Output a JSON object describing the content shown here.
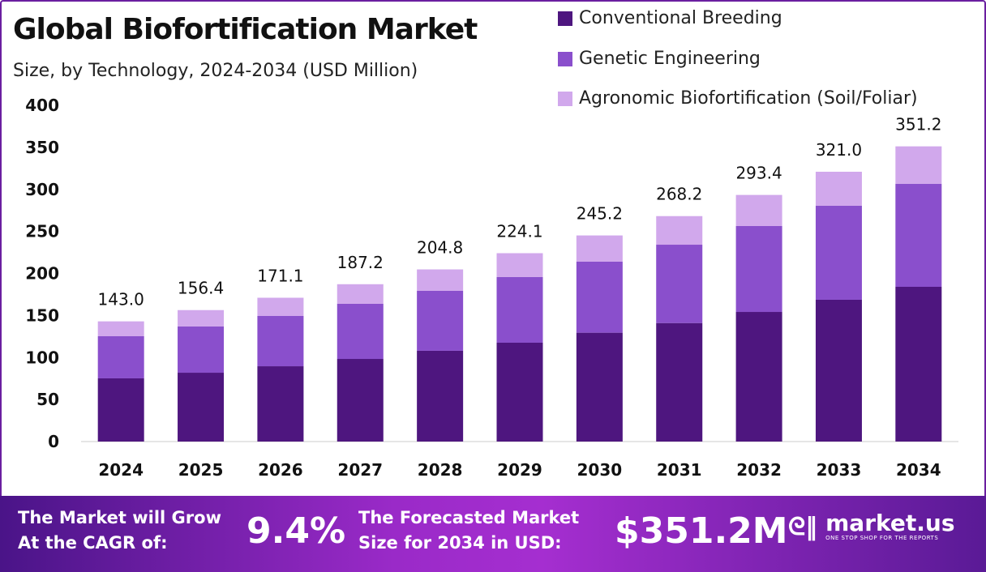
{
  "chart_data": {
    "type": "bar",
    "stacked": true,
    "title": "Global Biofortification Market",
    "subtitle": "Size, by Technology, 2024-2034 (USD Million)",
    "categories": [
      "2024",
      "2025",
      "2026",
      "2027",
      "2028",
      "2029",
      "2030",
      "2031",
      "2032",
      "2033",
      "2034"
    ],
    "series": [
      {
        "name": "Conventional Breeding",
        "color": "#4e167f",
        "values": [
          75.2,
          81.9,
          89.6,
          98.3,
          108.0,
          117.6,
          129.5,
          141.0,
          154.2,
          168.7,
          184.1
        ]
      },
      {
        "name": "Genetic Engineering",
        "color": "#8a4fcc",
        "values": [
          50.1,
          55.0,
          59.8,
          65.6,
          71.3,
          78.1,
          84.5,
          93.2,
          102.2,
          111.8,
          122.4
        ]
      },
      {
        "name": "Agronomic Biofortification (Soil/Foliar)",
        "color": "#d1a8ec",
        "values": [
          17.7,
          19.5,
          21.7,
          23.3,
          25.5,
          28.4,
          31.2,
          34.0,
          37.0,
          40.5,
          44.7
        ]
      }
    ],
    "totals": [
      "143.0",
      "156.4",
      "171.1",
      "187.2",
      "204.8",
      "224.1",
      "245.2",
      "268.2",
      "293.4",
      "321.0",
      "351.2"
    ],
    "ylim": [
      0,
      400
    ],
    "yticks": [
      "0",
      "50",
      "100",
      "150",
      "200",
      "250",
      "300",
      "350",
      "400"
    ],
    "grid": false,
    "legend": "top-right"
  },
  "footer": {
    "cagr_label_1": "The Market will Grow",
    "cagr_label_2": "At the CAGR of:",
    "cagr_value": "9.4%",
    "forecast_label_1": "The Forecasted Market",
    "forecast_label_2": "Size for 2034 in USD:",
    "forecast_value": "$351.2M",
    "logo_name": "market.us",
    "logo_tagline": "ONE STOP SHOP FOR THE REPORTS"
  }
}
